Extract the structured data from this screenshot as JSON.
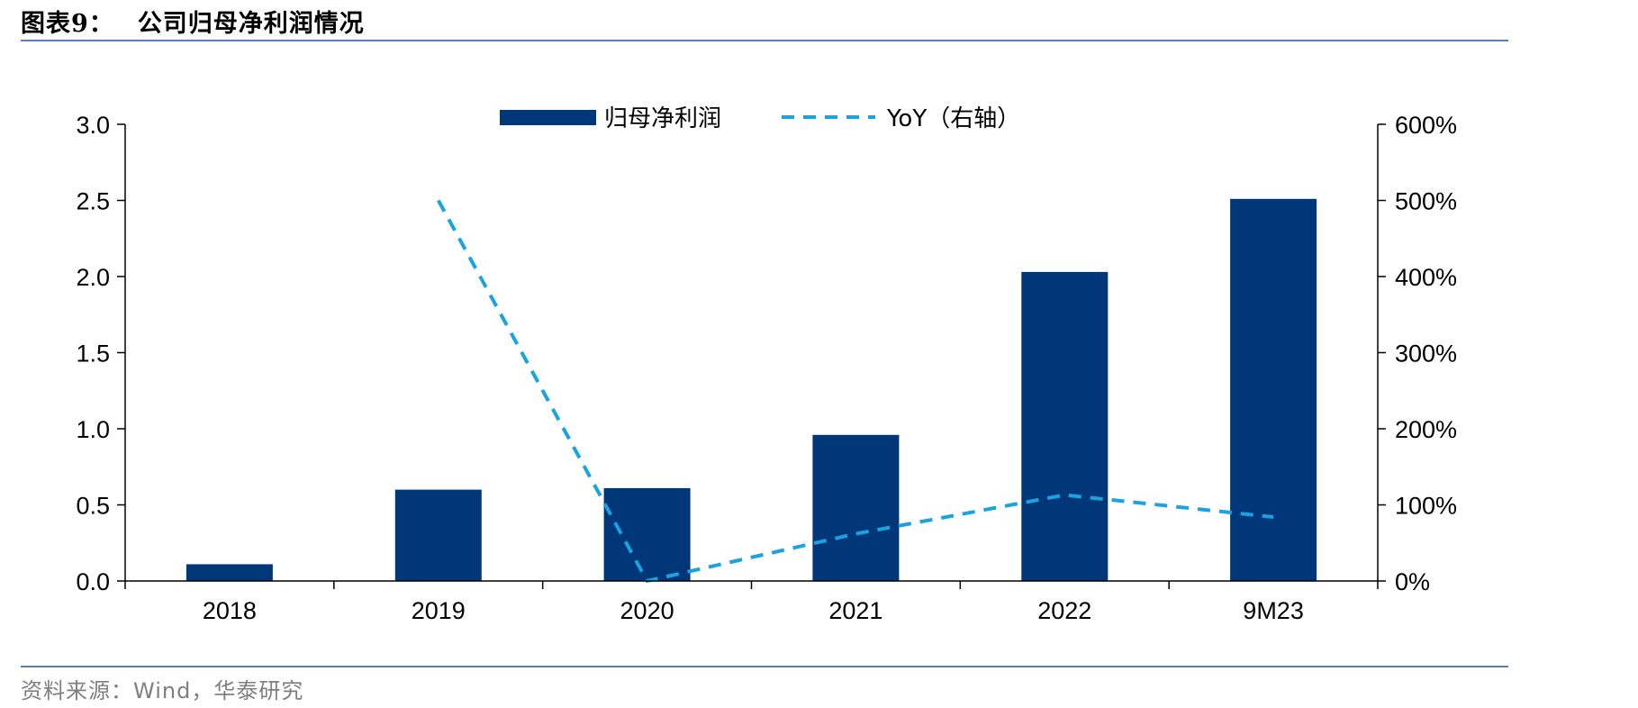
{
  "header": {
    "figure_label": "图表9：",
    "title": "公司归母净利润情况"
  },
  "footer": {
    "source": "资料来源：Wind，华泰研究"
  },
  "colors": {
    "bar": "#003778",
    "line": "#1aa3e0",
    "rule": "#5b7fb4",
    "source_text": "#7f7f7f"
  },
  "chart_data": {
    "type": "bar+line",
    "categories": [
      "2018",
      "2019",
      "2020",
      "2021",
      "2022",
      "9M23"
    ],
    "series": [
      {
        "name": "归母净利润",
        "type": "bar",
        "axis": "left",
        "values": [
          0.11,
          0.6,
          0.61,
          0.96,
          2.03,
          2.51
        ]
      },
      {
        "name": "YoY（右轴）",
        "type": "line",
        "style": "dashed",
        "axis": "right",
        "values": [
          null,
          5.0,
          0.0,
          0.62,
          1.13,
          0.84
        ]
      }
    ],
    "ylim_left": [
      0,
      3.0
    ],
    "yticks_left": [
      "0.0",
      "0.5",
      "1.0",
      "1.5",
      "2.0",
      "2.5",
      "3.0"
    ],
    "ylim_right": [
      0,
      6.0
    ],
    "yticks_right": [
      "0%",
      "100%",
      "200%",
      "300%",
      "400%",
      "500%",
      "600%"
    ],
    "legend_position": "top-center",
    "grid": false
  }
}
